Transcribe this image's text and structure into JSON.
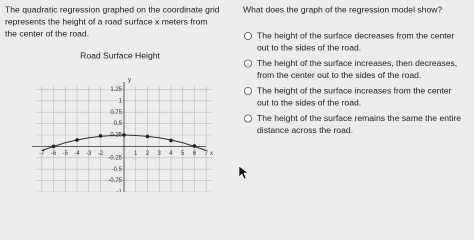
{
  "question": {
    "lines": [
      "The quadratic regression graphed on the coordinate grid",
      "represents the height of a road surface x meters from",
      "the center of the road."
    ]
  },
  "chart_data": {
    "type": "line",
    "title": "Road Surface Height",
    "x_label": "x",
    "y_label": "y",
    "xlim": [
      -7.5,
      7.5
    ],
    "ylim": [
      -1,
      1.5
    ],
    "xticks": [
      -7,
      -6,
      -5,
      -4,
      -3,
      -2,
      1,
      2,
      3,
      4,
      5,
      6,
      7
    ],
    "yticks": [
      -1,
      -0.75,
      -0.5,
      -0.25,
      0.25,
      0.5,
      0.75,
      1,
      1.25
    ],
    "grid": true,
    "series": [
      {
        "color": "#333333",
        "x": [
          -7,
          -6,
          -5,
          -4,
          -3,
          -2,
          -1,
          0,
          1,
          2,
          3,
          4,
          5,
          6,
          7
        ],
        "values": [
          -0.09,
          0,
          0.08,
          0.14,
          0.19,
          0.22,
          0.24,
          0.25,
          0.24,
          0.22,
          0.19,
          0.14,
          0.08,
          0,
          -0.09
        ]
      }
    ],
    "points": {
      "color": "#222222",
      "x": [
        -6,
        -4,
        -2,
        0,
        2,
        4,
        6
      ],
      "values": [
        0,
        0.14,
        0.23,
        0.25,
        0.22,
        0.13,
        0.01
      ]
    }
  },
  "prompt": "What does the graph of the regression model show?",
  "options": [
    {
      "lines": [
        "The height of the surface decreases from the center",
        "out to the sides of the road."
      ]
    },
    {
      "lines": [
        "The height of the surface increases, then decreases,",
        "from the center out to the sides of the road."
      ]
    },
    {
      "lines": [
        "The height of the surface increases from the center",
        "out to the sides of the road."
      ]
    },
    {
      "lines": [
        "The height of the surface remains the same the entire",
        "distance across the road."
      ]
    }
  ]
}
